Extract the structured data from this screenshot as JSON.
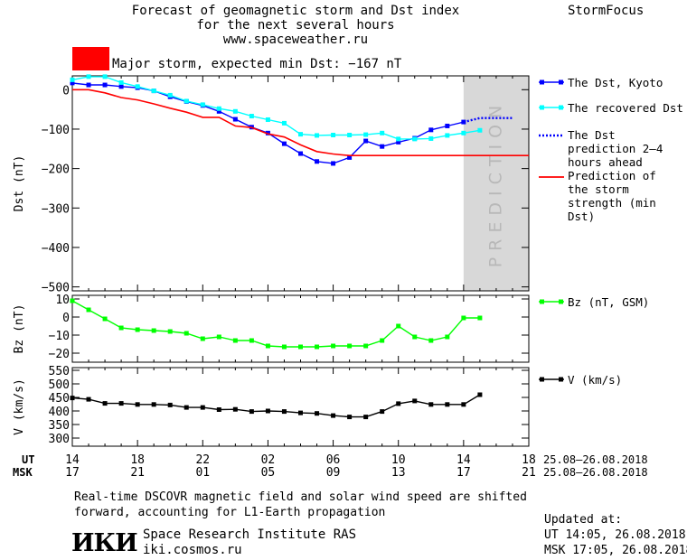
{
  "header": {
    "title_lines": [
      "Forecast of geomagnetic storm and Dst index",
      "for the next several hours",
      "www.spaceweather.ru"
    ],
    "brand": "StormFocus"
  },
  "storm_indicator": {
    "label": "Major storm, expected min Dst: −167 nT",
    "color": "#ff0000"
  },
  "time_axis": {
    "ut_label": "UT",
    "msk_label": "MSK",
    "ut_ticks": [
      "14",
      "18",
      "22",
      "02",
      "06",
      "10",
      "14",
      "18"
    ],
    "msk_ticks": [
      "17",
      "21",
      "01",
      "05",
      "09",
      "13",
      "17",
      "21"
    ],
    "date_range_ut": "25.08–26.08.2018",
    "date_range_msk": "25.08–26.08.2018"
  },
  "footer": {
    "note": "Real-time DSCOVR magnetic field and solar wind speed are shifted\nforward, accounting for L1-Earth propagation",
    "logo": "ИКИ",
    "institute": "Space Research Institute RAS",
    "website": "iki.cosmos.ru",
    "updated_title": "Updated at:",
    "updated_ut": "UT  14:05, 26.08.2018",
    "updated_msk": "MSK 17:05, 26.08.2018"
  },
  "chart_data": [
    {
      "type": "line",
      "panel": "dst",
      "ylabel": "Dst (nT)",
      "ylim": [
        -510,
        35
      ],
      "yticks": [
        0,
        -100,
        -200,
        -300,
        -400,
        -500
      ],
      "x_range_hours": [
        0,
        28
      ],
      "prediction_band": {
        "label": "PREDICTION",
        "x_start": 24,
        "x_end": 28,
        "color": "#d8d8d8"
      },
      "series": [
        {
          "name": "The Dst, Kyoto",
          "color": "#0000ff",
          "marker": "square",
          "x": [
            0,
            1,
            2,
            3,
            4,
            5,
            6,
            7,
            8,
            9,
            10,
            11,
            12,
            13,
            14,
            15,
            16,
            17,
            18,
            19,
            20,
            21,
            22,
            23,
            24
          ],
          "y": [
            17,
            12,
            12,
            8,
            5,
            -3,
            -18,
            -30,
            -40,
            -55,
            -75,
            -95,
            -110,
            -137,
            -162,
            -182,
            -187,
            -172,
            -130,
            -144,
            -133,
            -123,
            -102,
            -92,
            -82
          ]
        },
        {
          "name": "The recovered Dst",
          "color": "#00ffff",
          "marker": "square",
          "x": [
            0,
            1,
            2,
            3,
            4,
            5,
            6,
            7,
            8,
            9,
            10,
            11,
            12,
            13,
            14,
            15,
            16,
            17,
            18,
            19,
            20,
            21,
            22,
            23,
            24,
            25
          ],
          "y": [
            25,
            33,
            33,
            18,
            8,
            -3,
            -14,
            -29,
            -38,
            -48,
            -55,
            -67,
            -76,
            -85,
            -113,
            -116,
            -115,
            -115,
            -114,
            -110,
            -125,
            -125,
            -124,
            -116,
            -110,
            -103
          ]
        },
        {
          "name": "The Dst prediction 2–4 hours ahead",
          "color": "#0000ff",
          "style": "dotted",
          "x": [
            24,
            25,
            26,
            27
          ],
          "y": [
            -82,
            -72,
            -72,
            -72
          ]
        },
        {
          "name": "Prediction of the storm strength (min Dst)",
          "color": "#ff0000",
          "x": [
            0,
            1,
            2,
            3,
            4,
            5,
            6,
            7,
            8,
            9,
            10,
            11,
            12,
            13,
            14,
            15,
            16,
            17,
            18,
            19,
            20,
            21,
            22,
            23,
            24,
            25,
            26,
            27,
            28
          ],
          "y": [
            0,
            0,
            -8,
            -20,
            -26,
            -36,
            -47,
            -57,
            -70,
            -70,
            -92,
            -96,
            -112,
            -120,
            -140,
            -157,
            -163,
            -167,
            -167,
            -167,
            -167,
            -167,
            -167,
            -167,
            -167,
            -167,
            -167,
            -167,
            -167
          ]
        }
      ]
    },
    {
      "type": "line",
      "panel": "bz",
      "ylabel": "Bz (nT)",
      "ylim": [
        -25,
        12
      ],
      "yticks": [
        10,
        0,
        -10,
        -20
      ],
      "x_range_hours": [
        0,
        28
      ],
      "series": [
        {
          "name": "Bz (nT, GSM)",
          "color": "#00ff00",
          "marker": "square",
          "x": [
            0,
            1,
            2,
            3,
            4,
            5,
            6,
            7,
            8,
            9,
            10,
            11,
            12,
            13,
            14,
            15,
            16,
            17,
            18,
            19,
            20,
            21,
            22,
            23,
            24,
            25
          ],
          "y": [
            9,
            4,
            -1,
            -6,
            -7,
            -7.5,
            -8,
            -9,
            -12,
            -11,
            -13,
            -13,
            -16,
            -16.5,
            -16.5,
            -16.5,
            -16,
            -16,
            -16,
            -13,
            -5,
            -11,
            -13,
            -11,
            -0.5,
            -0.5
          ]
        }
      ]
    },
    {
      "type": "line",
      "panel": "v",
      "ylabel": "V (km/s)",
      "ylim": [
        270,
        560
      ],
      "yticks": [
        550,
        500,
        450,
        400,
        350,
        300
      ],
      "x_range_hours": [
        0,
        28
      ],
      "series": [
        {
          "name": "V (km/s)",
          "color": "#000000",
          "marker": "square",
          "x": [
            0,
            1,
            2,
            3,
            4,
            5,
            6,
            7,
            8,
            9,
            10,
            11,
            12,
            13,
            14,
            15,
            16,
            17,
            18,
            19,
            20,
            21,
            22,
            23,
            24,
            25
          ],
          "y": [
            448,
            443,
            428,
            428,
            424,
            424,
            422,
            413,
            413,
            405,
            406,
            398,
            400,
            398,
            393,
            391,
            383,
            378,
            378,
            398,
            427,
            437,
            424,
            424,
            424,
            460
          ]
        }
      ]
    }
  ]
}
